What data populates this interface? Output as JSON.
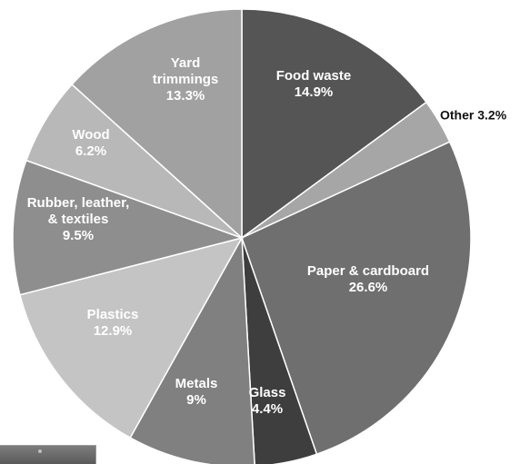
{
  "chart_data": {
    "type": "pie",
    "title": "",
    "slices": [
      {
        "label_lines": [
          "Food waste",
          "14.9%"
        ],
        "name": "Food waste",
        "value": 14.9,
        "color": "#555555",
        "label_pos": "inside"
      },
      {
        "label_lines": [
          "Other 3.2%"
        ],
        "name": "Other",
        "value": 3.2,
        "color": "#a6a6a6",
        "label_pos": "outside"
      },
      {
        "label_lines": [
          "Paper & cardboard",
          "26.6%"
        ],
        "name": "Paper & cardboard",
        "value": 26.6,
        "color": "#6f6f6f",
        "label_pos": "inside"
      },
      {
        "label_lines": [
          "Glass",
          "4.4%"
        ],
        "name": "Glass",
        "value": 4.4,
        "color": "#3e3e3e",
        "label_pos": "inside"
      },
      {
        "label_lines": [
          "Metals",
          "9%"
        ],
        "name": "Metals",
        "value": 9,
        "color": "#808080",
        "label_pos": "inside"
      },
      {
        "label_lines": [
          "Plastics",
          "12.9%"
        ],
        "name": "Plastics",
        "value": 12.9,
        "color": "#c4c4c4",
        "label_pos": "inside"
      },
      {
        "label_lines": [
          "Rubber, leather,",
          "& textiles",
          "9.5%"
        ],
        "name": "Rubber, leather, & textiles",
        "value": 9.5,
        "color": "#8e8e8e",
        "label_pos": "inside"
      },
      {
        "label_lines": [
          "Wood",
          "6.2%"
        ],
        "name": "Wood",
        "value": 6.2,
        "color": "#b8b8b8",
        "label_pos": "inside"
      },
      {
        "label_lines": [
          "Yard",
          "trimmings",
          "13.3%"
        ],
        "name": "Yard trimmings",
        "value": 13.3,
        "color": "#a1a1a1",
        "label_pos": "inside"
      }
    ],
    "start_angle": "12 o'clock",
    "direction": "clockwise",
    "legend": "none",
    "slice_border_color": "#ffffff",
    "inside_label_color": "#ffffff",
    "outside_label_color": "#111111"
  }
}
